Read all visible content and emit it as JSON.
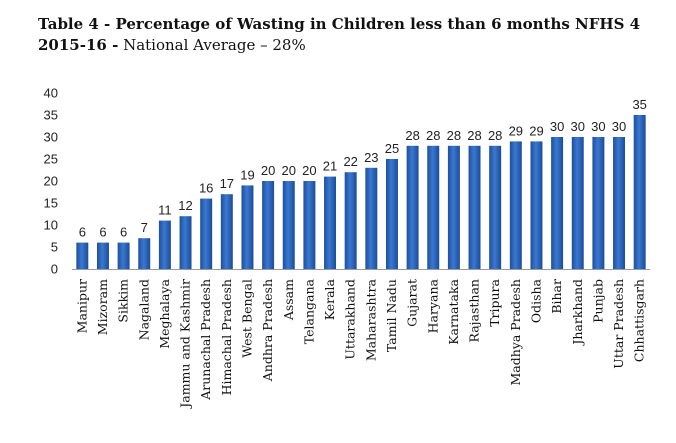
{
  "chart_data": {
    "type": "bar",
    "title": "Table 4 - Percentage of Wasting in Children less than 6 months NFHS 4",
    "subtitle_bold": "2015-16 -",
    "subtitle": "National Average – 28%",
    "xlabel": "",
    "ylabel": "",
    "ylim": [
      0,
      40
    ],
    "yticks": [
      0,
      5,
      10,
      15,
      20,
      25,
      30,
      35,
      40
    ],
    "grid": false,
    "bar_color": "#2e67c0",
    "categories": [
      "Manipur",
      "Mizoram",
      "Sikkim",
      "Nagaland",
      "Meghalaya",
      "Jammu and Kashmir",
      "Arunachal Pradesh",
      "Himachal Pradesh",
      "West Bengal",
      "Andhra Pradesh",
      "Assam",
      "Telangana",
      "Kerala",
      "Uttarakhand",
      "Maharashtra",
      "Tamil Nadu",
      "Gujarat",
      "Haryana",
      "Karnataka",
      "Rajasthan",
      "Tripura",
      "Madhya Pradesh",
      "Odisha",
      "Bihar",
      "Jharkhand",
      "Punjab",
      "Uttar Pradesh",
      "Chhattisgarh"
    ],
    "values": [
      6,
      6,
      6,
      7,
      11,
      12,
      16,
      17,
      19,
      20,
      20,
      20,
      21,
      22,
      23,
      25,
      28,
      28,
      28,
      28,
      28,
      29,
      29,
      30,
      30,
      30,
      30,
      35
    ]
  }
}
